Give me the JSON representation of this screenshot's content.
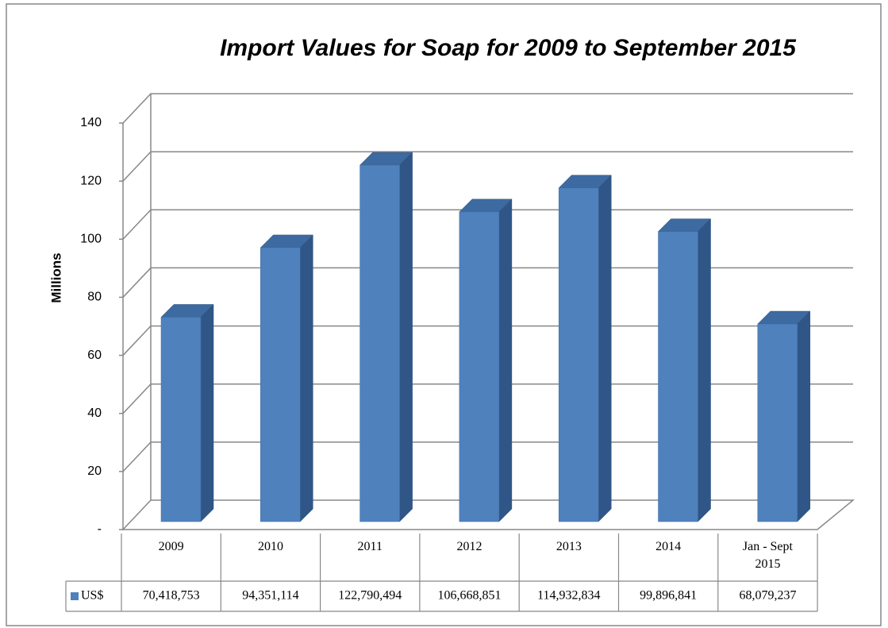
{
  "chart_data": {
    "type": "bar",
    "title": "Import Values for Soap for 2009 to September  2015",
    "y_label": "Millions",
    "categories": [
      "2009",
      "2010",
      "2011",
      "2012",
      "2013",
      "2014",
      "Jan - Sept 2015"
    ],
    "series": [
      {
        "name": "US$",
        "color": "#4f81bd",
        "values": [
          70.418753,
          94.351114,
          122.790494,
          106.668851,
          114.932834,
          99.896841,
          68.079237
        ],
        "value_labels": [
          "70,418,753",
          "94,351,114",
          "122,790,494",
          "106,668,851",
          "114,932,834",
          "99,896,841",
          "68,079,237"
        ]
      }
    ],
    "ylim": [
      0,
      140
    ],
    "yticks": [
      {
        "value": 0,
        "label": "-"
      },
      20,
      40,
      60,
      80,
      100,
      120,
      140
    ],
    "grid": true
  }
}
